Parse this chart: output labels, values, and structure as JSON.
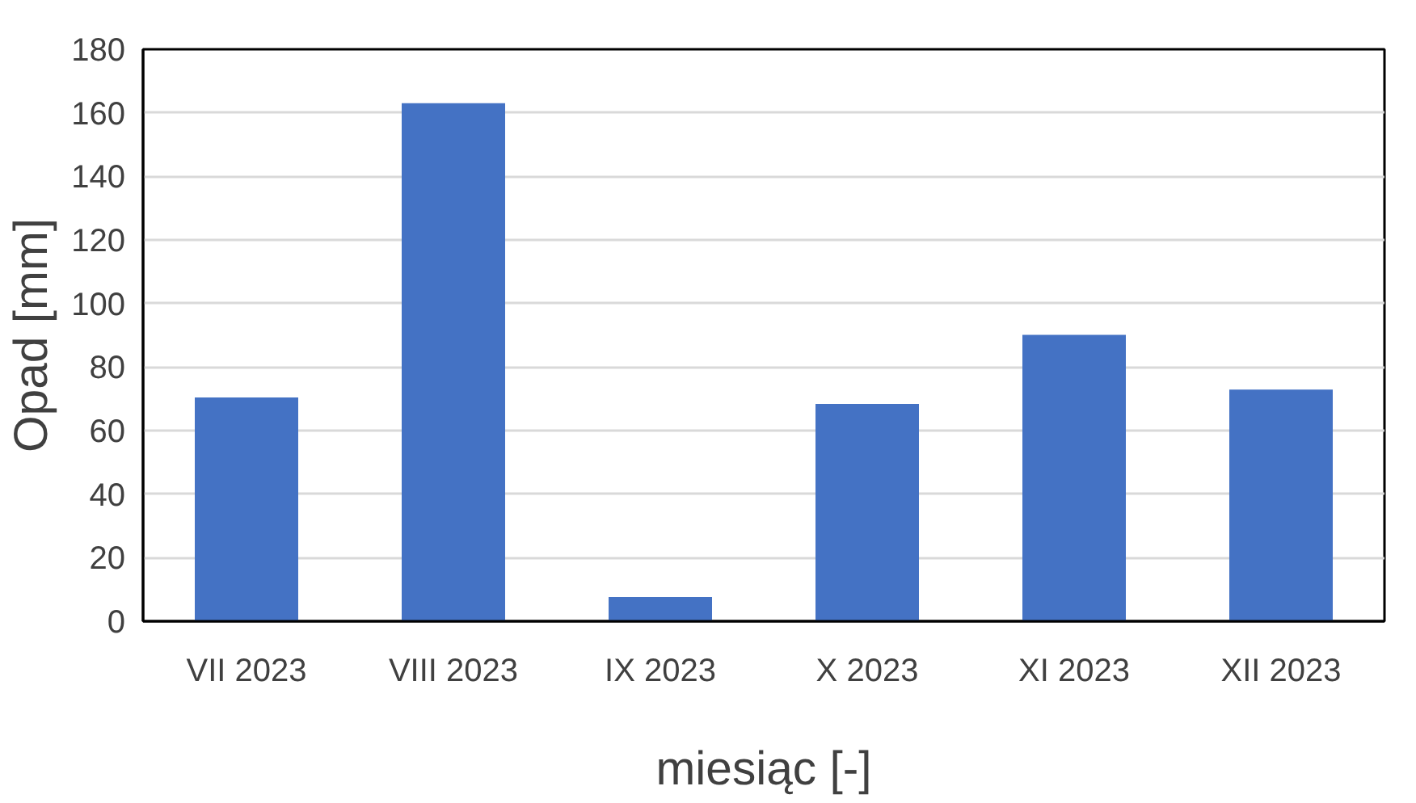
{
  "chart_data": {
    "type": "bar",
    "xlabel": "miesiąc [-]",
    "ylabel": "Opad [mm]",
    "categories": [
      "VII 2023",
      "VIII 2023",
      "IX 2023",
      "X 2023",
      "XI 2023",
      "XII 2023"
    ],
    "values": [
      70.4,
      163,
      7.6,
      68.4,
      90.1,
      72.9
    ],
    "color": "#4472c4",
    "ylim": [
      0,
      180
    ],
    "yticks": [
      0,
      20,
      40,
      60,
      80,
      100,
      120,
      140,
      160,
      180
    ],
    "grid": "y"
  }
}
